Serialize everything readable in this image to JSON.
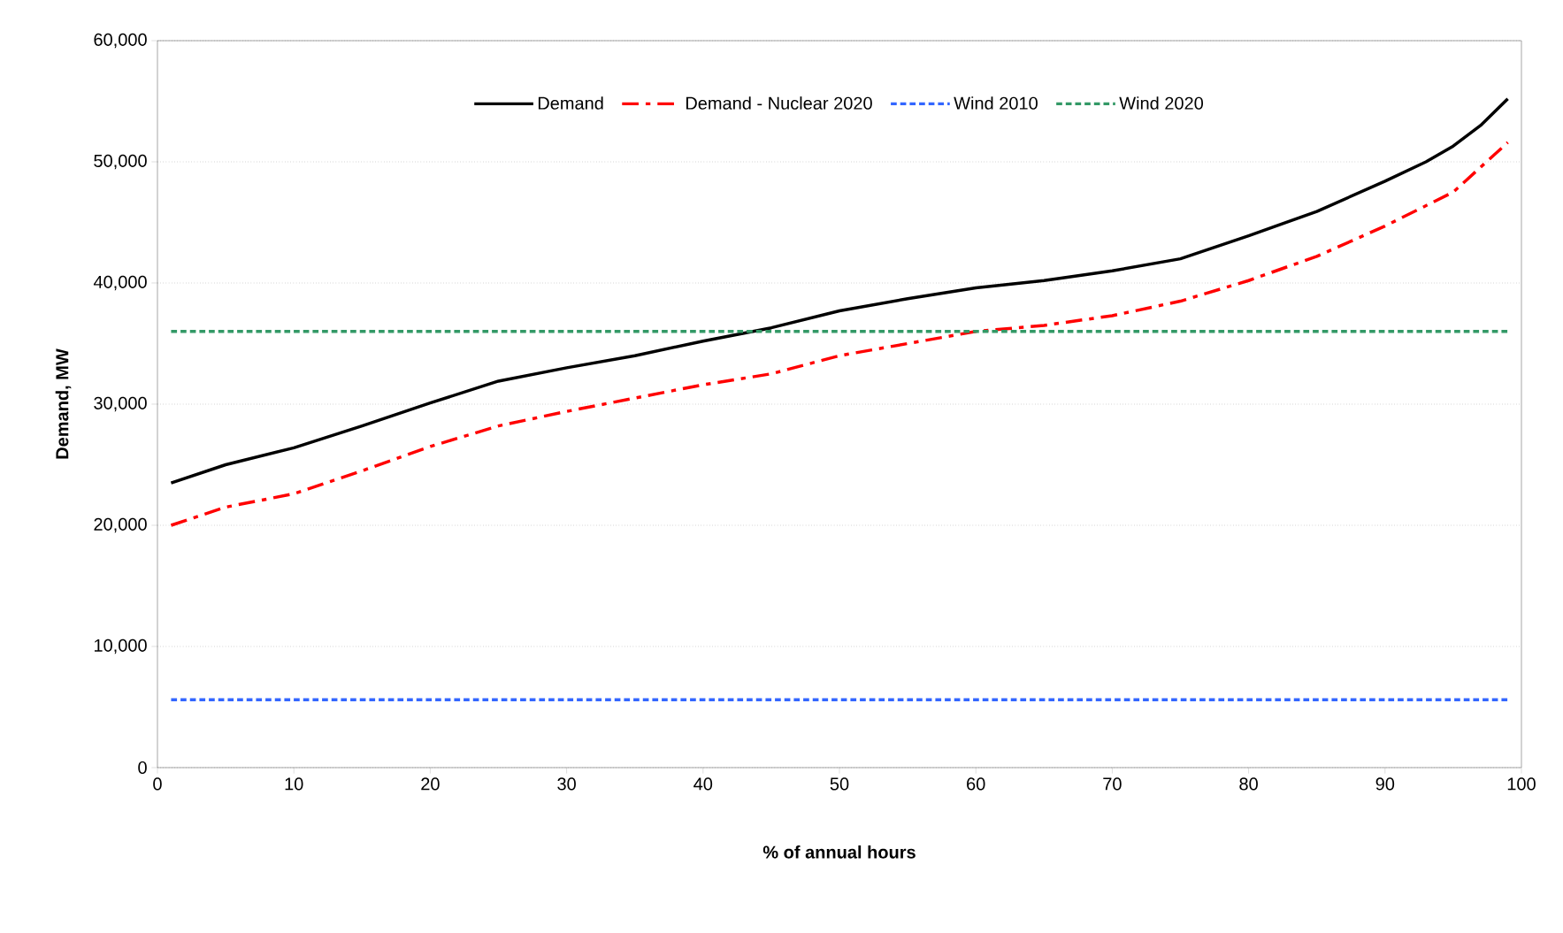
{
  "chart_data": {
    "type": "line",
    "xlabel": "% of annual hours",
    "ylabel": "Demand, MW",
    "xlim": [
      0,
      100
    ],
    "xticks": [
      0,
      10,
      20,
      30,
      40,
      50,
      60,
      70,
      80,
      90,
      100
    ],
    "ylim": [
      0,
      60000
    ],
    "yticks": [
      0,
      {
        "value": 10000,
        "label": "10,000"
      },
      {
        "value": 20000,
        "label": "20,000"
      },
      {
        "value": 30000,
        "label": "30,000"
      },
      {
        "value": 40000,
        "label": "40,000"
      },
      {
        "value": 50000,
        "label": "50,000"
      },
      {
        "value": 60000,
        "label": "60,000"
      }
    ],
    "grid": "y",
    "legend": "top",
    "marker": "none",
    "series": [
      {
        "name": "Demand",
        "color": "#000000",
        "line_style": "solid",
        "x": [
          1,
          5,
          10,
          15,
          20,
          25,
          30,
          35,
          40,
          45,
          50,
          55,
          60,
          65,
          70,
          75,
          80,
          85,
          90,
          93,
          95,
          97,
          99
        ],
        "values": [
          23500,
          25000,
          26400,
          28200,
          30100,
          31900,
          33000,
          34000,
          35200,
          36300,
          37700,
          38700,
          39600,
          40200,
          41000,
          42000,
          43900,
          45900,
          48400,
          50000,
          51300,
          53000,
          55200
        ]
      },
      {
        "name": "Demand - Nuclear 2020",
        "color": "#ff0000",
        "line_style": "dashed",
        "x": [
          1,
          5,
          10,
          15,
          20,
          25,
          30,
          35,
          40,
          45,
          50,
          55,
          60,
          65,
          70,
          75,
          80,
          85,
          90,
          95,
          99
        ],
        "values": [
          20000,
          21500,
          22600,
          24500,
          26500,
          28200,
          29400,
          30500,
          31600,
          32500,
          34000,
          35000,
          36000,
          36500,
          37300,
          38500,
          40200,
          42200,
          44700,
          47500,
          51600
        ]
      },
      {
        "name": "Wind 2010",
        "color": "#3366ff",
        "line_style": "dotted",
        "x": [
          1,
          99
        ],
        "values": [
          5600,
          5600
        ]
      },
      {
        "name": "Wind 2020",
        "color": "#339966",
        "line_style": "dotted",
        "x": [
          1,
          99
        ],
        "values": [
          36000,
          36000
        ]
      }
    ]
  }
}
